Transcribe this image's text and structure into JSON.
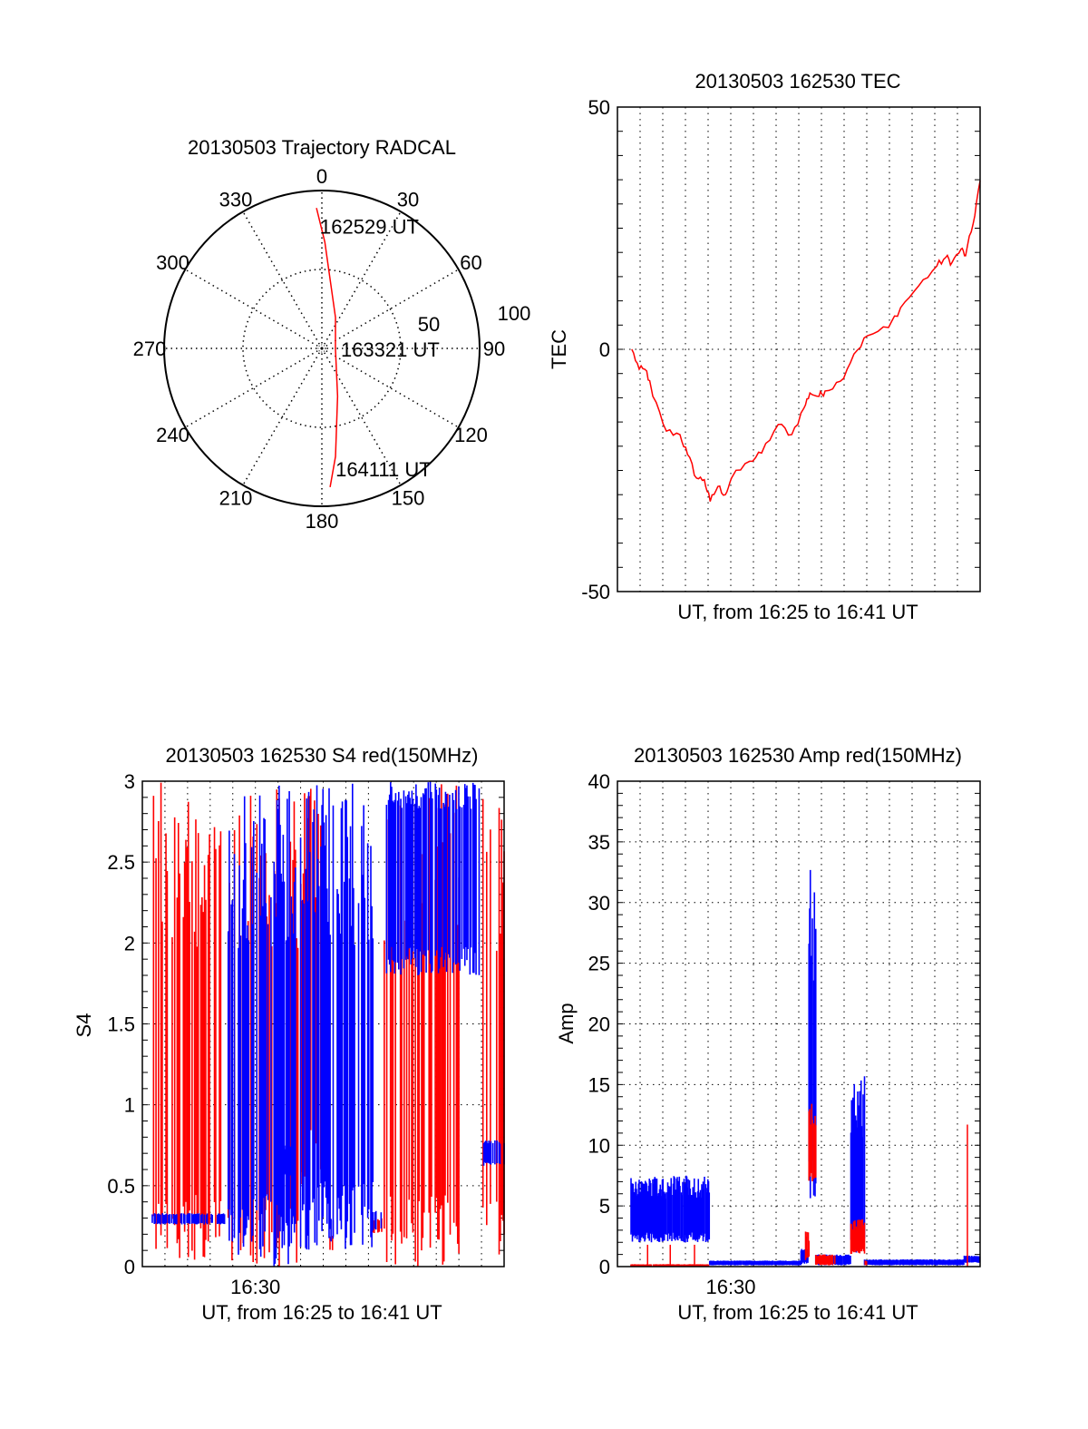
{
  "colors": {
    "red": "#ff0000",
    "blue": "#0000ff",
    "axis": "#000000"
  },
  "chart_data": [
    {
      "type": "polar",
      "title": "20130503 Trajectory RADCAL",
      "angle_ticks": [
        "0",
        "30",
        "60",
        "90",
        "120",
        "150",
        "180",
        "210",
        "240",
        "270",
        "300",
        "330"
      ],
      "angle_values": [
        0,
        30,
        60,
        90,
        120,
        150,
        180,
        210,
        240,
        270,
        300,
        330
      ],
      "radius_ticks": [
        "50",
        "100"
      ],
      "radius_values": [
        50,
        100
      ],
      "rmax": 100,
      "trajectory": [
        [
          357.8,
          89
        ],
        [
          1.6,
          67.4
        ],
        [
          23.8,
          21.4
        ],
        [
          90,
          8.6
        ],
        [
          161.8,
          31.9
        ],
        [
          172.8,
          69
        ],
        [
          176.6,
          88
        ]
      ],
      "annotations": [
        {
          "text": "162529 UT",
          "point": 0
        },
        {
          "text": "163321 UT",
          "point": 3
        },
        {
          "text": "164111 UT",
          "point": 6
        }
      ]
    },
    {
      "type": "line",
      "title": "20130503 162530 TEC",
      "xlabel": "UT, from 16:25 to 16:41 UT",
      "ylabel": "TEC",
      "xlim": [
        0,
        16
      ],
      "ylim": [
        -50,
        50
      ],
      "yticks": [
        "50",
        "0",
        "-50"
      ],
      "ytick_values": [
        50,
        0,
        -50
      ],
      "x_unit": "minutes after 16:25",
      "series": [
        {
          "name": "TEC",
          "color": "red",
          "x": [
            0.63,
            0.96,
            1.29,
            1.56,
            2.16,
            2.76,
            3.09,
            3.49,
            3.83,
            4.09,
            4.43,
            4.76,
            5.03,
            5.83,
            6.36,
            7.09,
            7.69,
            8.23,
            8.49,
            8.89,
            9.16,
            9.83,
            10.43,
            11.03,
            11.96,
            12.49,
            13.29,
            14.09,
            14.49,
            14.76,
            15.16,
            15.36,
            15.69,
            16.0
          ],
          "y": [
            0,
            -4.1,
            -4.5,
            -9.7,
            -16.9,
            -17.6,
            -21.7,
            -26.6,
            -26.9,
            -31.4,
            -28.3,
            -30.0,
            -26.6,
            -23.1,
            -21.4,
            -15.5,
            -17.6,
            -12.1,
            -9.0,
            -9.7,
            -8.6,
            -6.6,
            -1.0,
            2.8,
            4.5,
            8.6,
            13.1,
            17.2,
            19.0,
            17.9,
            20.7,
            19.3,
            25.9,
            34.8
          ]
        }
      ]
    },
    {
      "type": "line",
      "title": "20130503 162530 S4 red(150MHz)",
      "xlabel": "UT, from 16:25 to 16:41 UT",
      "ylabel": "S4",
      "xlim": [
        0,
        16
      ],
      "ylim": [
        0,
        3
      ],
      "xticks": [
        "16:30"
      ],
      "xtick_values": [
        5
      ],
      "yticks": [
        "0",
        "0.5",
        "1",
        "1.5",
        "2",
        "2.5",
        "3"
      ],
      "ytick_values": [
        0,
        0.5,
        1,
        1.5,
        2,
        2.5,
        3
      ],
      "x_unit": "minutes after 16:25",
      "series": [
        {
          "name": "red",
          "color": "red",
          "bands": [
            [
              0.44,
              3.72,
              0,
              3
            ],
            [
              3.8,
              6.9,
              0,
              3
            ],
            [
              6.9,
              8.0,
              0.5,
              3
            ],
            [
              10.7,
              14.1,
              0,
              3
            ],
            [
              14.9,
              16,
              0,
              3
            ],
            [
              8.3,
              8.5,
              0.1,
              0.2
            ],
            [
              10.2,
              10.6,
              0.2,
              0.3
            ]
          ]
        },
        {
          "name": "blue",
          "color": "blue",
          "bands": [
            [
              3.8,
              6.9,
              0,
              3
            ],
            [
              7.0,
              10.2,
              0.1,
              3
            ],
            [
              10.8,
              14.9,
              1.8,
              3
            ],
            [
              0.44,
              3.72,
              0.26,
              0.33
            ],
            [
              15.1,
              16,
              0.62,
              0.78
            ],
            [
              10.2,
              10.6,
              0.22,
              0.35
            ],
            [
              8.3,
              8.5,
              0.15,
              0.3
            ],
            [
              6.3,
              6.6,
              0.55,
              0.75
            ]
          ]
        }
      ]
    },
    {
      "type": "line",
      "title": "20130503 162530 Amp red(150MHz)",
      "xlabel": "UT, from 16:25 to 16:41 UT",
      "ylabel": "Amp",
      "xlim": [
        0,
        16
      ],
      "ylim": [
        0,
        40
      ],
      "xticks": [
        "16:30"
      ],
      "xtick_values": [
        5
      ],
      "yticks": [
        "0",
        "5",
        "10",
        "15",
        "20",
        "25",
        "30",
        "35",
        "40"
      ],
      "ytick_values": [
        0,
        5,
        10,
        15,
        20,
        25,
        30,
        35,
        40
      ],
      "x_unit": "minutes after 16:25",
      "series": [
        {
          "name": "blue",
          "color": "blue",
          "bands": [
            [
              0.6,
              4.07,
              2,
              7.5
            ],
            [
              4.07,
              8.1,
              0.1,
              0.5
            ],
            [
              8.1,
              8.4,
              0.2,
              1.5
            ],
            [
              8.45,
              8.75,
              5,
              33
            ],
            [
              8.75,
              10.3,
              0.1,
              1
            ],
            [
              10.3,
              10.9,
              1,
              15.7
            ],
            [
              10.9,
              15.3,
              0.1,
              0.6
            ],
            [
              15.3,
              16,
              0.3,
              0.9
            ]
          ]
        },
        {
          "name": "red",
          "color": "red",
          "bands": [
            [
              0.6,
              4.07,
              0,
              0.2
            ],
            [
              8.3,
              8.45,
              0.5,
              3
            ],
            [
              8.45,
              8.75,
              7,
              13.6
            ],
            [
              8.75,
              9.6,
              0.1,
              1
            ],
            [
              10.3,
              10.9,
              1,
              4
            ],
            [
              10.9,
              11,
              0.1,
              0.5
            ]
          ],
          "spikes": [
            [
              1.33,
              1.8
            ],
            [
              2.33,
              1.8
            ],
            [
              3.4,
              1.8
            ],
            [
              15.44,
              11.7
            ]
          ]
        }
      ]
    }
  ]
}
